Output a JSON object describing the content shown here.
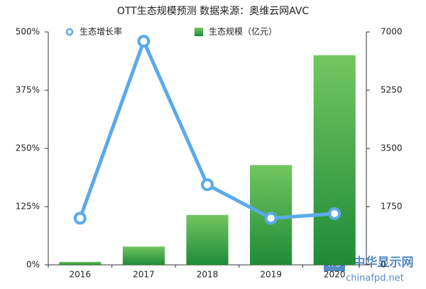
{
  "chart_data": {
    "type": "bar-line",
    "title": "OTT生态规模预测  数据来源：奥维云网AVC",
    "categories": [
      "2016",
      "2017",
      "2018",
      "2019",
      "2020"
    ],
    "series": [
      {
        "name": "生态增长率",
        "type": "line",
        "color": "#5aaaea",
        "axis": "y",
        "values": [
          100,
          480,
          172,
          100,
          110
        ]
      },
      {
        "name": "生态规模（亿元）",
        "type": "bar",
        "color": "#3aa845",
        "axis": "y2",
        "values": [
          90,
          550,
          1500,
          3000,
          6300
        ]
      }
    ],
    "ylim": [
      0,
      500
    ],
    "yticks": [
      {
        "value": 0,
        "label": "0%"
      },
      {
        "value": 125,
        "label": "125%"
      },
      {
        "value": 250,
        "label": "250%"
      },
      {
        "value": 375,
        "label": "375%"
      },
      {
        "value": 500,
        "label": "500%"
      }
    ],
    "y2lim": [
      0,
      7000
    ],
    "y2ticks": [
      0,
      1750,
      3500,
      5250,
      7000
    ],
    "grid": false,
    "legend": "top"
  },
  "watermark": {
    "badge": "FPD",
    "name": "中华显示网",
    "site": "chinafpd.net"
  }
}
